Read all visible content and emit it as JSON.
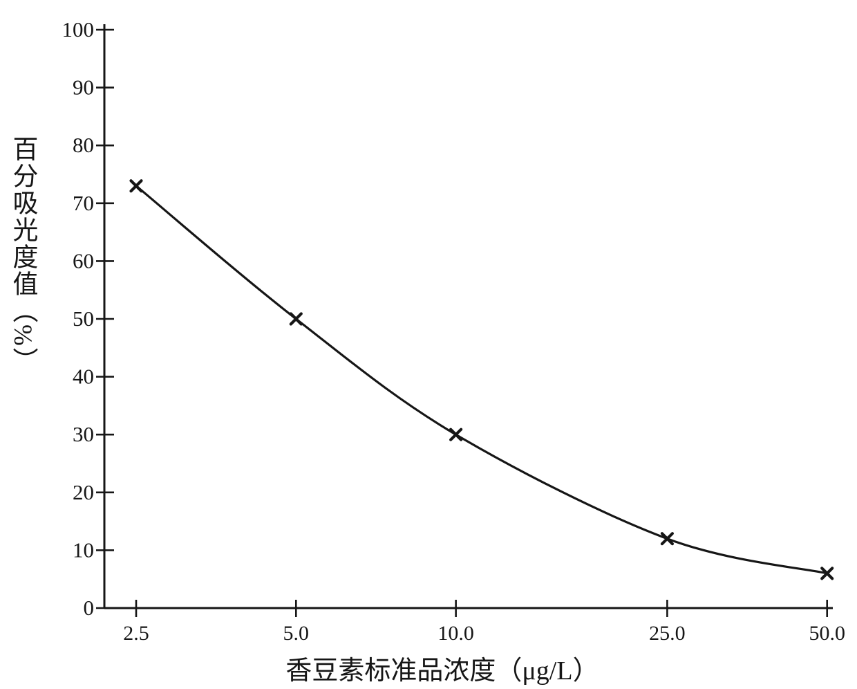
{
  "figure": {
    "background_color": "#ffffff",
    "ink_color": "#161616"
  },
  "chart_data": {
    "type": "line",
    "xlabel": "香豆素标准品浓度（μg/L）",
    "ylabel": "百分吸光度值（%）",
    "x_scale": "log",
    "x": [
      2.5,
      5.0,
      10.0,
      25.0,
      50.0
    ],
    "x_tick_labels": [
      "2.5",
      "5.0",
      "10.0",
      "25.0",
      "50.0"
    ],
    "series": [
      {
        "marker": "x",
        "values": [
          73,
          50,
          30,
          12,
          6
        ]
      }
    ],
    "y_ticks": [
      0,
      10,
      20,
      30,
      40,
      50,
      60,
      70,
      80,
      90,
      100
    ],
    "y_tick_labels": [
      "0",
      "10",
      "20",
      "30",
      "40",
      "50",
      "60",
      "70",
      "80",
      "90",
      "100"
    ],
    "ylim": [
      0,
      100
    ],
    "grid": false,
    "legend": false,
    "line_color": "#161616",
    "marker_color": "#161616"
  }
}
